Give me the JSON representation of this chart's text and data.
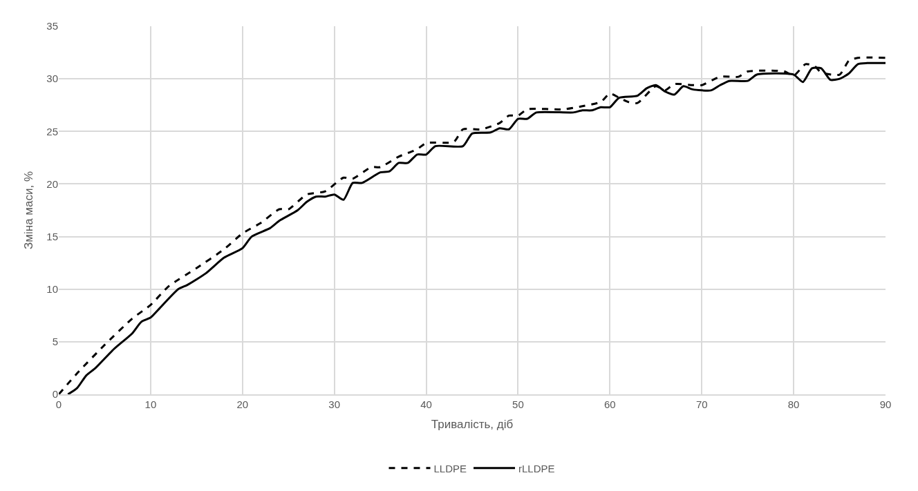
{
  "chart_data": {
    "type": "line",
    "xlabel": "Тривалість, діб",
    "ylabel": "Зміна маси, %",
    "xlim": [
      0,
      90
    ],
    "xticks": [
      0,
      10,
      20,
      30,
      40,
      50,
      60,
      70,
      80,
      90
    ],
    "ylim": [
      0,
      35
    ],
    "yticks": [
      0,
      5,
      10,
      15,
      20,
      25,
      30,
      35
    ],
    "grid": true,
    "legend": "bottom",
    "marker": "none",
    "series": [
      {
        "name": "LLDPE",
        "color": "#000000",
        "line_style": "dashed",
        "x": [
          0,
          2,
          5,
          8,
          10,
          12,
          15,
          18,
          20,
          22,
          24,
          25,
          27,
          29,
          31,
          32,
          34,
          35,
          37,
          39,
          40,
          43,
          44,
          46,
          48,
          49,
          50,
          51,
          55,
          57,
          59,
          60,
          61,
          62,
          63,
          65,
          66,
          67,
          69,
          70,
          72,
          74,
          75,
          79,
          80,
          81.3,
          82.3,
          83,
          85,
          86,
          87,
          90
        ],
        "values": [
          0,
          2,
          4.7,
          7.2,
          8.5,
          10.3,
          12,
          13.8,
          15.3,
          16.3,
          17.6,
          17.6,
          19,
          19.3,
          20.6,
          20.5,
          21.6,
          21.6,
          22.6,
          23.3,
          23.9,
          24,
          25.2,
          25.2,
          25.8,
          26.5,
          26.5,
          27.1,
          27.1,
          27.4,
          27.8,
          28.6,
          28.2,
          27.8,
          27.7,
          29.3,
          28.9,
          29.5,
          29.4,
          29.4,
          30.2,
          30.2,
          30.7,
          30.7,
          30.3,
          31.4,
          31.2,
          30.6,
          30.4,
          31.7,
          32,
          32
        ]
      },
      {
        "name": "rLLDPE",
        "color": "#000000",
        "line_style": "solid",
        "x": [
          1,
          2,
          3,
          4,
          6,
          8,
          9,
          10,
          11,
          13,
          14,
          16,
          18,
          20,
          21,
          23,
          24,
          26,
          27,
          28,
          29,
          30,
          31,
          32,
          33,
          35,
          36,
          37,
          38,
          39,
          40,
          41,
          44,
          45,
          47,
          48,
          49,
          50,
          51,
          52,
          56,
          57,
          58,
          59,
          60,
          61,
          63,
          64,
          65,
          66,
          67,
          68,
          69,
          71,
          72,
          73,
          75,
          76,
          80,
          81,
          82,
          83,
          84,
          85,
          86,
          87,
          88,
          90
        ],
        "values": [
          0,
          0.6,
          1.8,
          2.5,
          4.3,
          5.8,
          6.9,
          7.3,
          8.2,
          10,
          10.4,
          11.5,
          13,
          13.9,
          15,
          15.8,
          16.5,
          17.5,
          18.3,
          18.8,
          18.8,
          19,
          18.5,
          20.1,
          20.1,
          21.1,
          21.2,
          22,
          22,
          22.8,
          22.8,
          23.6,
          23.6,
          24.8,
          24.9,
          25.3,
          25.2,
          26.2,
          26.2,
          26.8,
          26.8,
          27,
          27,
          27.3,
          27.3,
          28.2,
          28.4,
          29.1,
          29.4,
          28.8,
          28.5,
          29.3,
          29,
          28.9,
          29.4,
          29.8,
          29.8,
          30.4,
          30.4,
          29.7,
          31,
          31,
          29.9,
          30,
          30.5,
          31.4,
          31.5,
          31.5
        ]
      }
    ]
  }
}
